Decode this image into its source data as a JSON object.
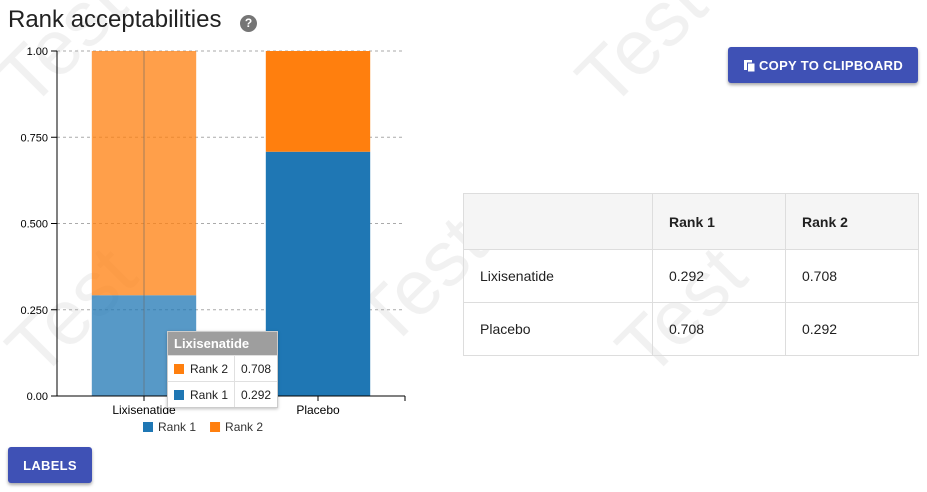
{
  "page": {
    "title": "Rank acceptabilities",
    "help_icon": "question-circle-icon",
    "copy_button_label": "COPY TO CLIPBOARD",
    "copy_icon": "clipboard-icon",
    "labels_button_label": "LABELS",
    "watermark_text": "Test"
  },
  "colors": {
    "rank1": "#1f77b4",
    "rank2": "#ff7f0e",
    "button": "#3f51b5",
    "gridline": "#aaaaaa"
  },
  "chart_data": {
    "type": "bar",
    "stacked": true,
    "categories": [
      "Lixisenatide",
      "Placebo"
    ],
    "series": [
      {
        "name": "Rank 1",
        "values": [
          0.292,
          0.708
        ]
      },
      {
        "name": "Rank 2",
        "values": [
          0.708,
          0.292
        ]
      }
    ],
    "ylim": [
      0,
      1
    ],
    "yticks": [
      0,
      0.25,
      0.5,
      0.75,
      1.0
    ],
    "ytick_labels": [
      "0.00",
      "0.250",
      "0.500",
      "0.750",
      "1.00"
    ],
    "grid": true,
    "legend_position": "bottom",
    "highlighted_category": 0
  },
  "tooltip": {
    "title": "Lixisenatide",
    "rows": [
      {
        "label": "Rank 2",
        "value": "0.708"
      },
      {
        "label": "Rank 1",
        "value": "0.292"
      }
    ]
  },
  "table": {
    "headers": [
      "",
      "Rank 1",
      "Rank 2"
    ],
    "rows": [
      [
        "Lixisenatide",
        "0.292",
        "0.708"
      ],
      [
        "Placebo",
        "0.708",
        "0.292"
      ]
    ]
  }
}
